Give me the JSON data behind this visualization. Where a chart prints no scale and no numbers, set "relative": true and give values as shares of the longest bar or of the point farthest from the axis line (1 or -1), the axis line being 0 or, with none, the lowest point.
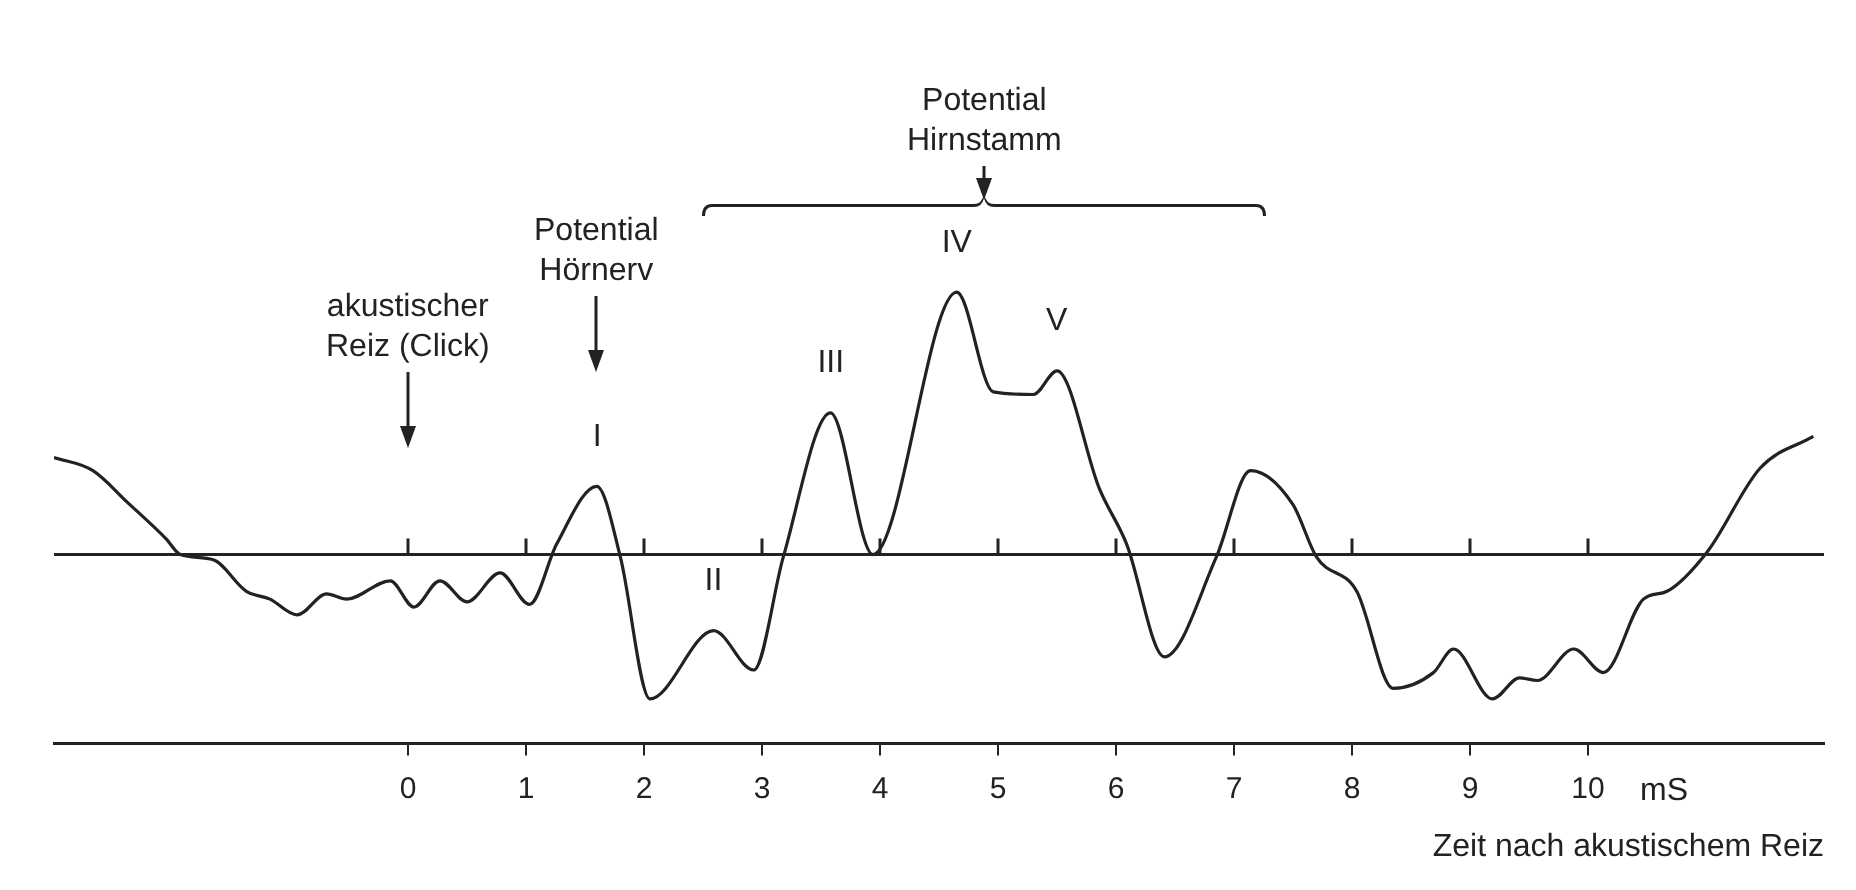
{
  "chart_data": {
    "type": "line",
    "relative": true,
    "x": [
      -3.0,
      -2.67,
      -2.38,
      -2.05,
      -1.93,
      -1.65,
      -1.37,
      -1.17,
      -0.94,
      -0.69,
      -0.52,
      -0.15,
      0.05,
      0.27,
      0.5,
      0.78,
      1.03,
      1.26,
      1.6,
      1.8,
      2.05,
      2.59,
      2.93,
      3.18,
      3.58,
      3.94,
      4.65,
      4.96,
      5.3,
      5.5,
      5.86,
      6.09,
      6.41,
      6.85,
      7.14,
      7.5,
      7.7,
      8.04,
      8.35,
      8.69,
      8.86,
      9.19,
      9.42,
      9.57,
      9.88,
      10.13,
      10.47,
      10.67,
      11.01,
      11.46,
      11.91
    ],
    "values": [
      0.37,
      0.32,
      0.2,
      0.06,
      0,
      -0.02,
      -0.14,
      -0.17,
      -0.23,
      -0.15,
      -0.17,
      -0.1,
      -0.2,
      -0.1,
      -0.18,
      -0.07,
      -0.19,
      0.04,
      0.26,
      -0.01,
      -0.55,
      -0.29,
      -0.44,
      -0.01,
      0.54,
      0,
      1,
      0.62,
      0.61,
      0.7,
      0.25,
      0.04,
      -0.39,
      -0.01,
      0.32,
      0.19,
      -0.01,
      -0.14,
      -0.51,
      -0.45,
      -0.36,
      -0.55,
      -0.47,
      -0.48,
      -0.36,
      -0.45,
      -0.17,
      -0.14,
      0.01,
      0.33,
      0.45
    ],
    "color": "#222222",
    "xlim": [
      -3,
      12
    ],
    "xticks": [
      0,
      1,
      2,
      3,
      4,
      5,
      6,
      7,
      8,
      9,
      10
    ],
    "xlabel": "Zeit nach akustischem Reiz",
    "grid": false,
    "legend": false,
    "ref_lines": [
      {
        "axis": "y",
        "value": 0
      }
    ],
    "annotations": [
      "akustischer\nReiz (Click)",
      "Potential\nHörnerv",
      "Potential\nHirnstamm",
      {
        "text": "I",
        "x": 1.6,
        "y": 0.26
      },
      {
        "text": "II",
        "x": 2.59,
        "y": -0.29
      },
      {
        "text": "III",
        "x": 3.58,
        "y": 0.54
      },
      {
        "text": "IV",
        "x": 4.65,
        "y": 1
      },
      {
        "text": "V",
        "x": 5.5,
        "y": 0.7
      },
      "mS"
    ]
  }
}
